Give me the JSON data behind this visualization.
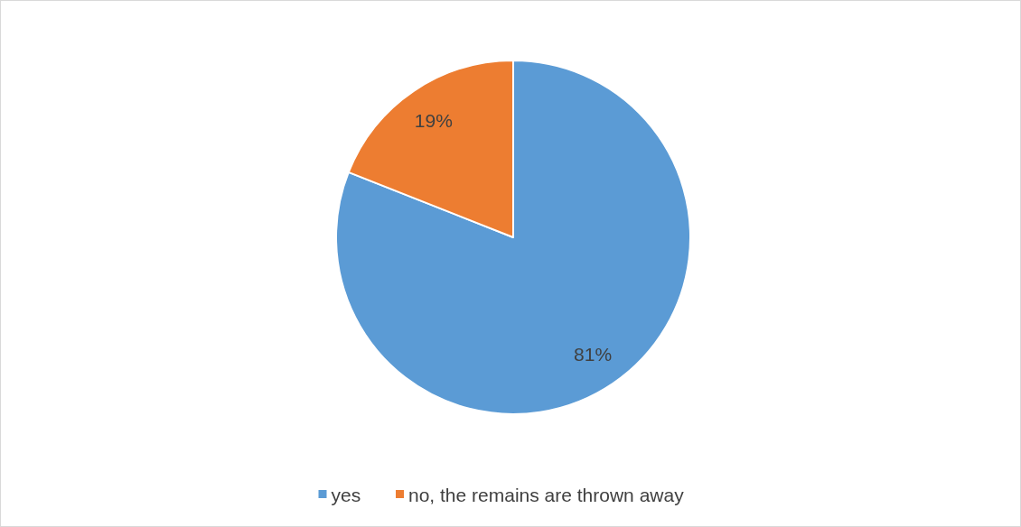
{
  "chart_data": {
    "type": "pie",
    "categories": [
      "yes",
      "no, the remains are thrown away"
    ],
    "values": [
      81,
      19
    ],
    "colors": [
      "#5b9bd5",
      "#ed7d31"
    ],
    "value_labels": [
      "81%",
      "19%"
    ],
    "legend": "bottom"
  }
}
